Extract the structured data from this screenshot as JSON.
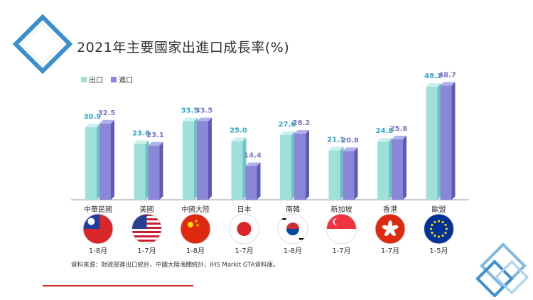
{
  "slide": {
    "title": "2021年主要國家出進口成長率(%)",
    "source": "資料來源：財政部進出口統計、中國大陸海關統計、IHS Markit GTA資料庫。"
  },
  "colors": {
    "export_front": "#9fe0dc",
    "export_side": "#6cc3c0",
    "export_top": "#c9f0ee",
    "import_front": "#8a87d8",
    "import_side": "#5f5bb5",
    "import_top": "#b3b1ec",
    "export_label": "#2fa5c8",
    "import_label": "#7a78c8",
    "accent_red": "#d9262a",
    "deco_blue": "#3a8fd0"
  },
  "chart_data": {
    "type": "bar",
    "categories": [
      "中華民國",
      "美國",
      "中國大陸",
      "日本",
      "南韓",
      "新加坡",
      "香港",
      "歐盟"
    ],
    "periods": [
      "1-8月",
      "1-7月",
      "1-8月",
      "1-7月",
      "1-8月",
      "1-7月",
      "1-7月",
      "1-5月"
    ],
    "flags": [
      "taiwan-flag",
      "usa-flag",
      "china-flag",
      "japan-flag",
      "korea-flag",
      "singapore-flag",
      "hongkong-flag",
      "eu-flag"
    ],
    "series": [
      {
        "name": "出口",
        "values": [
          30.9,
          23.8,
          33.5,
          25.0,
          27.6,
          21.1,
          24.8,
          48.2
        ]
      },
      {
        "name": "進口",
        "values": [
          32.5,
          23.1,
          33.5,
          14.4,
          28.2,
          20.8,
          25.8,
          48.7
        ]
      }
    ],
    "value_labels": [
      [
        "30.9",
        "23.8",
        "33.5",
        "25.0",
        "27.6",
        "21.1",
        "24.8",
        "48.2"
      ],
      [
        "32.5",
        "23.1",
        "33.5",
        "14.4",
        "28.2",
        "20.8",
        "25.8",
        "48.7"
      ]
    ],
    "ylim": [
      0,
      50
    ],
    "grid": false,
    "legend": "top-left"
  }
}
